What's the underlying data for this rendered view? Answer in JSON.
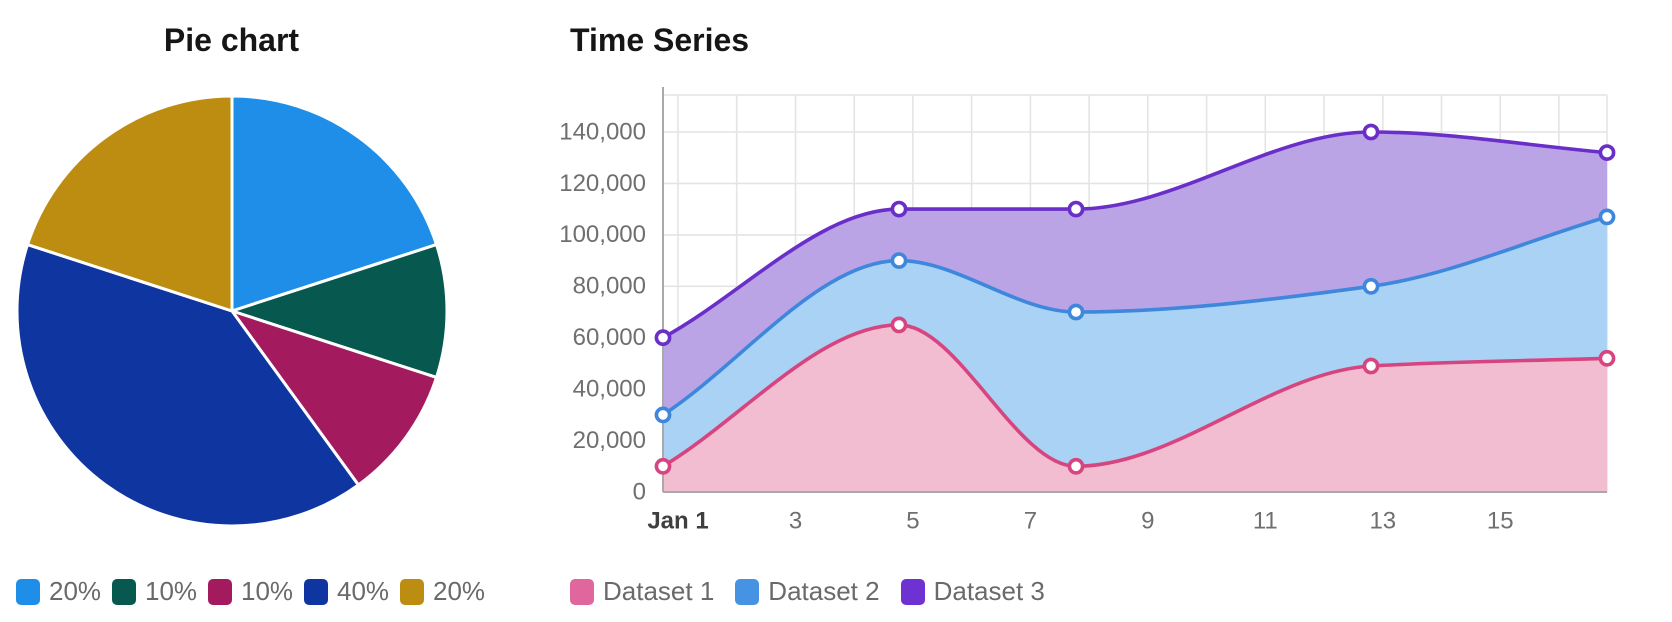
{
  "pie": {
    "title": "Pie chart",
    "legend": [
      {
        "label": "20%",
        "color": "#1e8ee8"
      },
      {
        "label": "10%",
        "color": "#07594f"
      },
      {
        "label": "10%",
        "color": "#a31a5e"
      },
      {
        "label": "40%",
        "color": "#0e35a0"
      },
      {
        "label": "20%",
        "color": "#bd8d12"
      }
    ]
  },
  "timeseries": {
    "title": "Time Series",
    "legend": [
      {
        "label": "Dataset 1",
        "color": "#e0679e"
      },
      {
        "label": "Dataset 2",
        "color": "#4593e2"
      },
      {
        "label": "Dataset 3",
        "color": "#6e31d2"
      }
    ]
  },
  "chart_data": [
    {
      "type": "pie",
      "title": "Pie chart",
      "labels": [
        "20%",
        "10%",
        "10%",
        "40%",
        "20%"
      ],
      "values": [
        20,
        10,
        10,
        40,
        20
      ],
      "colors": [
        "#1e8ee8",
        "#07594f",
        "#a31a5e",
        "#0e35a0",
        "#bd8d12"
      ],
      "legend_position": "bottom",
      "start_angle_deg": 0,
      "direction": "clockwise"
    },
    {
      "type": "area",
      "title": "Time Series",
      "x": [
        1,
        5,
        8,
        13,
        17
      ],
      "x_axis": {
        "month": "Jan",
        "tick_days": [
          1,
          3,
          5,
          7,
          9,
          11,
          13,
          15
        ],
        "tick_labels": [
          "Jan 1",
          "3",
          "5",
          "7",
          "9",
          "11",
          "13",
          "15"
        ],
        "range": [
          1,
          17
        ]
      },
      "y_axis": {
        "min": 0,
        "max": 140000,
        "tick_step": 20000,
        "tick_labels": [
          "0",
          "20,000",
          "40,000",
          "60,000",
          "80,000",
          "100,000",
          "120,000",
          "140,000"
        ]
      },
      "series": [
        {
          "name": "Dataset 3",
          "line_color": "#6a2ec9",
          "fill_color": "#bba4e5",
          "values": [
            60000,
            110000,
            110000,
            140000,
            132000
          ]
        },
        {
          "name": "Dataset 2",
          "line_color": "#3e87dc",
          "fill_color": "#a9d2f4",
          "values": [
            30000,
            90000,
            70000,
            80000,
            107000
          ]
        },
        {
          "name": "Dataset 1",
          "line_color": "#d6457f",
          "fill_color": "#f3bdd1",
          "values": [
            10000,
            65000,
            10000,
            49000,
            52000
          ]
        }
      ],
      "grid": true,
      "smooth": "monotone",
      "legend_position": "bottom"
    }
  ]
}
